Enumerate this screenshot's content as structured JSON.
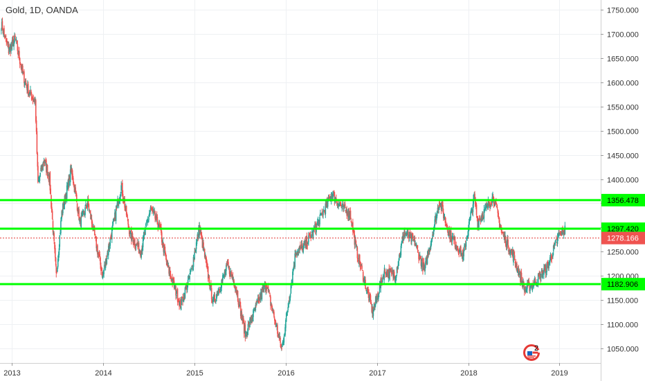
{
  "chart_data": {
    "type": "candlestick",
    "title": "Gold, 1D, OANDA",
    "ylim": [
      1020,
      1770
    ],
    "y_ticks": [
      "1750.000",
      "1700.000",
      "1650.000",
      "1600.000",
      "1550.000",
      "1500.000",
      "1450.000",
      "1400.000",
      "1350.000",
      "1300.000",
      "1250.000",
      "1200.000",
      "1150.000",
      "1100.000",
      "1050.000"
    ],
    "x_ticks": [
      "2013",
      "2014",
      "2015",
      "2016",
      "2017",
      "2018",
      "2019"
    ],
    "x_range": [
      "2012-11-15",
      "2019-06-15"
    ],
    "grid": true,
    "up_color": "#26a69a",
    "down_color": "#ef5350",
    "price_path": [
      [
        "2012-11-20",
        1720
      ],
      [
        "2012-12-20",
        1665
      ],
      [
        "2013-01-15",
        1690
      ],
      [
        "2013-02-15",
        1615
      ],
      [
        "2013-03-10",
        1580
      ],
      [
        "2013-04-05",
        1560
      ],
      [
        "2013-04-16",
        1390
      ],
      [
        "2013-05-10",
        1440
      ],
      [
        "2013-06-01",
        1400
      ],
      [
        "2013-06-28",
        1200
      ],
      [
        "2013-07-20",
        1330
      ],
      [
        "2013-08-28",
        1420
      ],
      [
        "2013-10-01",
        1310
      ],
      [
        "2013-11-01",
        1350
      ],
      [
        "2013-12-31",
        1200
      ],
      [
        "2014-03-15",
        1385
      ],
      [
        "2014-04-20",
        1285
      ],
      [
        "2014-06-01",
        1250
      ],
      [
        "2014-07-10",
        1340
      ],
      [
        "2014-08-15",
        1300
      ],
      [
        "2014-09-15",
        1220
      ],
      [
        "2014-11-07",
        1140
      ],
      [
        "2014-12-15",
        1200
      ],
      [
        "2015-01-22",
        1300
      ],
      [
        "2015-03-17",
        1145
      ],
      [
        "2015-05-15",
        1220
      ],
      [
        "2015-06-15",
        1180
      ],
      [
        "2015-07-24",
        1080
      ],
      [
        "2015-10-15",
        1185
      ],
      [
        "2015-12-17",
        1048
      ],
      [
        "2016-02-11",
        1250
      ],
      [
        "2016-03-15",
        1260
      ],
      [
        "2016-05-01",
        1300
      ],
      [
        "2016-07-06",
        1370
      ],
      [
        "2016-08-15",
        1340
      ],
      [
        "2016-09-15",
        1330
      ],
      [
        "2016-10-10",
        1255
      ],
      [
        "2016-12-15",
        1125
      ],
      [
        "2017-01-31",
        1210
      ],
      [
        "2017-03-15",
        1200
      ],
      [
        "2017-04-20",
        1290
      ],
      [
        "2017-06-01",
        1270
      ],
      [
        "2017-07-10",
        1210
      ],
      [
        "2017-09-08",
        1355
      ],
      [
        "2017-10-15",
        1290
      ],
      [
        "2017-12-12",
        1240
      ],
      [
        "2018-01-25",
        1365
      ],
      [
        "2018-02-08",
        1310
      ],
      [
        "2018-03-15",
        1340
      ],
      [
        "2018-04-11",
        1365
      ],
      [
        "2018-05-15",
        1290
      ],
      [
        "2018-07-01",
        1240
      ],
      [
        "2018-08-16",
        1170
      ],
      [
        "2018-10-01",
        1190
      ],
      [
        "2018-11-15",
        1220
      ],
      [
        "2018-12-31",
        1285
      ],
      [
        "2019-01-25",
        1297
      ]
    ],
    "horizontal_levels": [
      {
        "value": 1356.478,
        "label": "1356.478",
        "color": "#00ff00",
        "line_width": 3,
        "style": "solid",
        "badge_bg": "#00ff00",
        "badge_fg": "#000000"
      },
      {
        "value": 1297.42,
        "label": "1297.420",
        "color": "#00ff00",
        "line_width": 3,
        "style": "solid",
        "badge_bg": "#00ff00",
        "badge_fg": "#000000"
      },
      {
        "value": 1182.906,
        "label": "1182.906",
        "color": "#00ff00",
        "line_width": 3,
        "style": "solid",
        "badge_bg": "#00ff00",
        "badge_fg": "#000000"
      },
      {
        "value": 1278.166,
        "label": "1278.166",
        "color": "#e53935",
        "line_width": 1,
        "style": "dotted",
        "badge_bg": "#ef5350",
        "badge_fg": "#ffffff"
      }
    ]
  },
  "logo": {
    "text": "2",
    "icon": "tradingview-g-logo-icon"
  }
}
